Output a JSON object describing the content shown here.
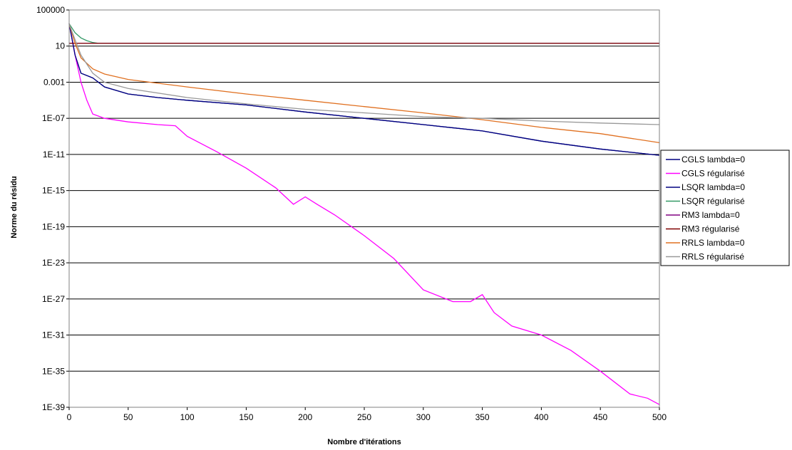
{
  "chart_data": {
    "type": "line",
    "title": "",
    "xlabel": "Nombre d'itérations",
    "ylabel": "Norme du résidu",
    "y_scale": "log",
    "xlim": [
      0,
      500
    ],
    "ylim": [
      1e-39,
      100000
    ],
    "x_ticks": [
      0,
      50,
      100,
      150,
      200,
      250,
      300,
      350,
      400,
      450,
      500
    ],
    "y_ticks": [
      {
        "value": 100000.0,
        "label": "100000"
      },
      {
        "value": 10,
        "label": "10"
      },
      {
        "value": 0.001,
        "label": "0.001"
      },
      {
        "value": 1e-07,
        "label": "1E-07"
      },
      {
        "value": 1e-11,
        "label": "1E-11"
      },
      {
        "value": 1e-15,
        "label": "1E-15"
      },
      {
        "value": 1e-19,
        "label": "1E-19"
      },
      {
        "value": 1e-23,
        "label": "1E-23"
      },
      {
        "value": 1e-27,
        "label": "1E-27"
      },
      {
        "value": 1e-31,
        "label": "1E-31"
      },
      {
        "value": 1e-35,
        "label": "1E-35"
      },
      {
        "value": 1e-39,
        "label": "1E-39"
      }
    ],
    "grid": "horizontal",
    "legend_position": "right",
    "series": [
      {
        "name": "CGLS lambda=0",
        "color": "#000080",
        "x": [
          0,
          5,
          10,
          20,
          30,
          50,
          75,
          100,
          150,
          200,
          250,
          300,
          350,
          400,
          450,
          500
        ],
        "y": [
          3000,
          1,
          0.01,
          0.003,
          0.0003,
          5e-05,
          2e-05,
          1e-05,
          3e-06,
          5e-07,
          1e-07,
          2e-08,
          4e-09,
          3e-10,
          4e-11,
          8e-12
        ]
      },
      {
        "name": "CGLS régularisé",
        "color": "#FF00FF",
        "x": [
          0,
          5,
          10,
          15,
          20,
          30,
          50,
          75,
          90,
          100,
          125,
          150,
          175,
          190,
          200,
          210,
          225,
          250,
          275,
          300,
          325,
          340,
          350,
          360,
          375,
          400,
          425,
          450,
          475,
          490,
          500
        ],
        "y": [
          3000,
          1,
          0.001,
          1e-05,
          3e-07,
          1e-07,
          4e-08,
          2e-08,
          1.5e-08,
          1e-09,
          2e-11,
          3e-13,
          2e-15,
          3e-17,
          2e-16,
          3e-17,
          2e-18,
          1e-20,
          3e-23,
          1e-26,
          5e-28,
          5e-28,
          3e-27,
          3e-29,
          1e-30,
          1e-31,
          2e-33,
          1e-35,
          3e-38,
          1e-38,
          2e-39
        ]
      },
      {
        "name": "LSQR lambda=0",
        "color": "#000080",
        "x": [
          0,
          5,
          10,
          20,
          30,
          50,
          75,
          100,
          150,
          200,
          250,
          300,
          350,
          400,
          450,
          500
        ],
        "y": [
          3000,
          1,
          0.01,
          0.003,
          0.0003,
          5e-05,
          2e-05,
          1e-05,
          3e-06,
          5e-07,
          1e-07,
          2e-08,
          4e-09,
          3e-10,
          4e-11,
          8e-12
        ]
      },
      {
        "name": "LSQR régularisé",
        "color": "#339966",
        "x": [
          0,
          5,
          10,
          15,
          20,
          25,
          500
        ],
        "y": [
          3000,
          300,
          80,
          40,
          25,
          20,
          20
        ]
      },
      {
        "name": "RM3 lambda=0",
        "color": "#800080",
        "x": [
          0,
          500
        ],
        "y": [
          20,
          20
        ]
      },
      {
        "name": "RM3 régularisé",
        "color": "#800000",
        "x": [
          0,
          500
        ],
        "y": [
          20,
          20
        ]
      },
      {
        "name": "RRLS lambda=0",
        "color": "#E07020",
        "x": [
          0,
          5,
          10,
          20,
          30,
          50,
          100,
          150,
          200,
          250,
          300,
          350,
          400,
          450,
          500
        ],
        "y": [
          3000,
          20,
          0.5,
          0.03,
          0.008,
          0.002,
          0.0003,
          5e-05,
          1e-05,
          2e-06,
          4e-07,
          7e-08,
          1e-08,
          2e-09,
          2e-10
        ]
      },
      {
        "name": "RRLS régularisé",
        "color": "#999999",
        "x": [
          0,
          5,
          10,
          20,
          30,
          50,
          100,
          150,
          200,
          250,
          300,
          350,
          400,
          450,
          500
        ],
        "y": [
          3000,
          50,
          1,
          0.01,
          0.001,
          0.0002,
          2e-05,
          4e-06,
          1e-06,
          4e-07,
          1.5e-07,
          1e-07,
          5e-08,
          3e-08,
          2e-08
        ]
      }
    ]
  }
}
